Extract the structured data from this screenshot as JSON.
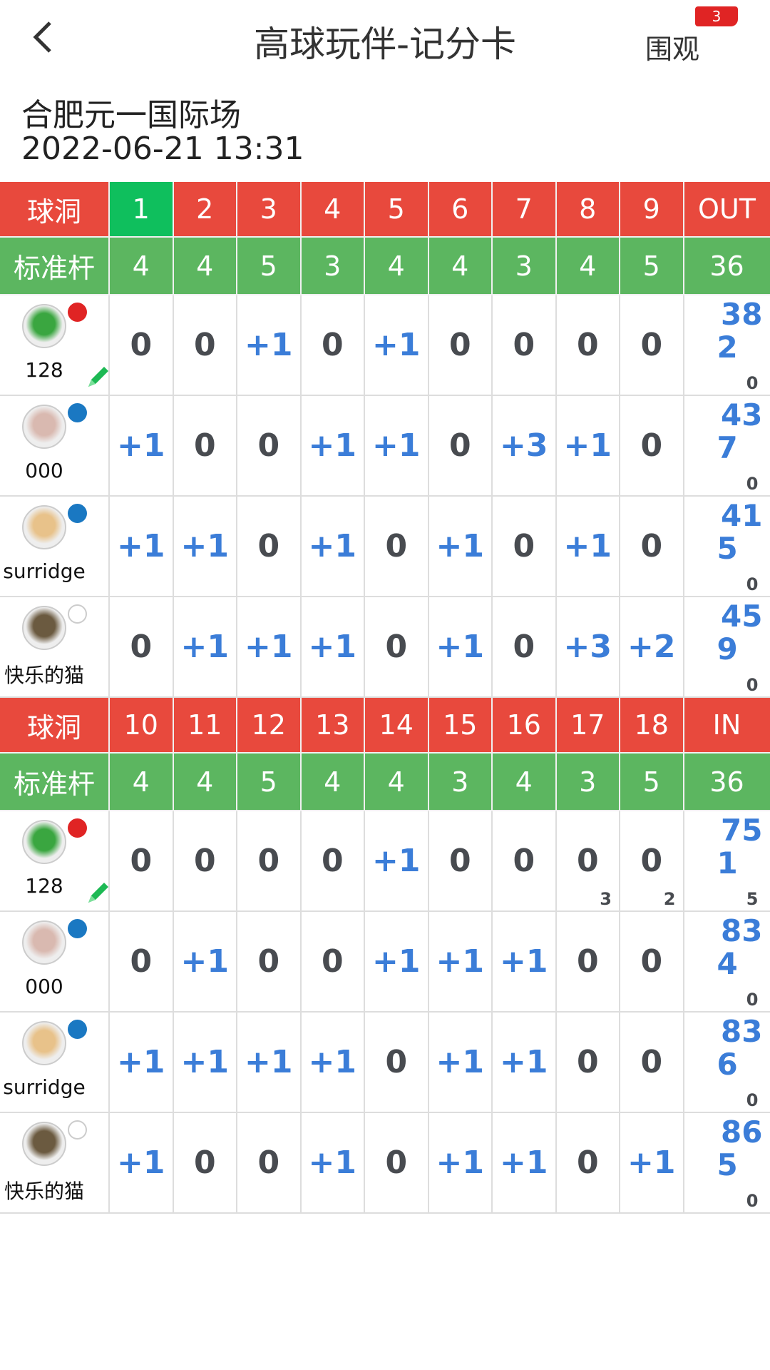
{
  "header": {
    "title": "高球玩伴-记分卡",
    "watch_label": "围观",
    "watch_count": "3"
  },
  "venue": "合肥元一国际场",
  "datetime": "2022-06-21 13:31",
  "colors": {
    "hole_header": "#e8493d",
    "current_hole": "#0fbf5d",
    "par_row": "#5cb660",
    "over_par": "#3b7dd8",
    "even": "#484b50"
  },
  "current_hole": 1,
  "halves": [
    {
      "hole_label": "球洞",
      "par_label": "标准杆",
      "holes": [
        "1",
        "2",
        "3",
        "4",
        "5",
        "6",
        "7",
        "8",
        "9"
      ],
      "total_label": "OUT",
      "pars": [
        "4",
        "4",
        "5",
        "3",
        "4",
        "4",
        "3",
        "4",
        "5"
      ],
      "par_total": "36",
      "players": [
        {
          "name": "128",
          "dot_color": "#e02424",
          "editable": true,
          "scores": [
            "0",
            "0",
            "+1",
            "0",
            "+1",
            "0",
            "0",
            "0",
            "0"
          ],
          "subs": [
            "",
            "",
            "",
            "",
            "",
            "",
            "",
            "",
            ""
          ],
          "total": "38",
          "to_par": "2",
          "extra": "0"
        },
        {
          "name": "000",
          "dot_color": "#1a78c2",
          "editable": false,
          "scores": [
            "+1",
            "0",
            "0",
            "+1",
            "+1",
            "0",
            "+3",
            "+1",
            "0"
          ],
          "subs": [
            "",
            "",
            "",
            "",
            "",
            "",
            "",
            "",
            ""
          ],
          "total": "43",
          "to_par": "7",
          "extra": "0"
        },
        {
          "name": "surridge",
          "dot_color": "#1a78c2",
          "editable": false,
          "scores": [
            "+1",
            "+1",
            "0",
            "+1",
            "0",
            "+1",
            "0",
            "+1",
            "0"
          ],
          "subs": [
            "",
            "",
            "",
            "",
            "",
            "",
            "",
            "",
            ""
          ],
          "total": "41",
          "to_par": "5",
          "extra": "0"
        },
        {
          "name": "快乐的猫",
          "dot_color": "",
          "editable": false,
          "scores": [
            "0",
            "+1",
            "+1",
            "+1",
            "0",
            "+1",
            "0",
            "+3",
            "+2"
          ],
          "subs": [
            "",
            "",
            "",
            "",
            "",
            "",
            "",
            "",
            ""
          ],
          "total": "45",
          "to_par": "9",
          "extra": "0"
        }
      ]
    },
    {
      "hole_label": "球洞",
      "par_label": "标准杆",
      "holes": [
        "10",
        "11",
        "12",
        "13",
        "14",
        "15",
        "16",
        "17",
        "18"
      ],
      "total_label": "IN",
      "pars": [
        "4",
        "4",
        "5",
        "4",
        "4",
        "3",
        "4",
        "3",
        "5"
      ],
      "par_total": "36",
      "players": [
        {
          "name": "128",
          "dot_color": "#e02424",
          "editable": true,
          "scores": [
            "0",
            "0",
            "0",
            "0",
            "+1",
            "0",
            "0",
            "0",
            "0"
          ],
          "subs": [
            "",
            "",
            "",
            "",
            "",
            "",
            "",
            "3",
            "2"
          ],
          "total": "75",
          "to_par": "1",
          "extra": "5"
        },
        {
          "name": "000",
          "dot_color": "#1a78c2",
          "editable": false,
          "scores": [
            "0",
            "+1",
            "0",
            "0",
            "+1",
            "+1",
            "+1",
            "0",
            "0"
          ],
          "subs": [
            "",
            "",
            "",
            "",
            "",
            "",
            "",
            "",
            ""
          ],
          "total": "83",
          "to_par": "4",
          "extra": "0"
        },
        {
          "name": "surridge",
          "dot_color": "#1a78c2",
          "editable": false,
          "scores": [
            "+1",
            "+1",
            "+1",
            "+1",
            "0",
            "+1",
            "+1",
            "0",
            "0"
          ],
          "subs": [
            "",
            "",
            "",
            "",
            "",
            "",
            "",
            "",
            ""
          ],
          "total": "83",
          "to_par": "6",
          "extra": "0"
        },
        {
          "name": "快乐的猫",
          "dot_color": "",
          "editable": false,
          "scores": [
            "+1",
            "0",
            "0",
            "+1",
            "0",
            "+1",
            "+1",
            "0",
            "+1"
          ],
          "subs": [
            "",
            "",
            "",
            "",
            "",
            "",
            "",
            "",
            ""
          ],
          "total": "86",
          "to_par": "5",
          "extra": "0"
        }
      ]
    }
  ]
}
